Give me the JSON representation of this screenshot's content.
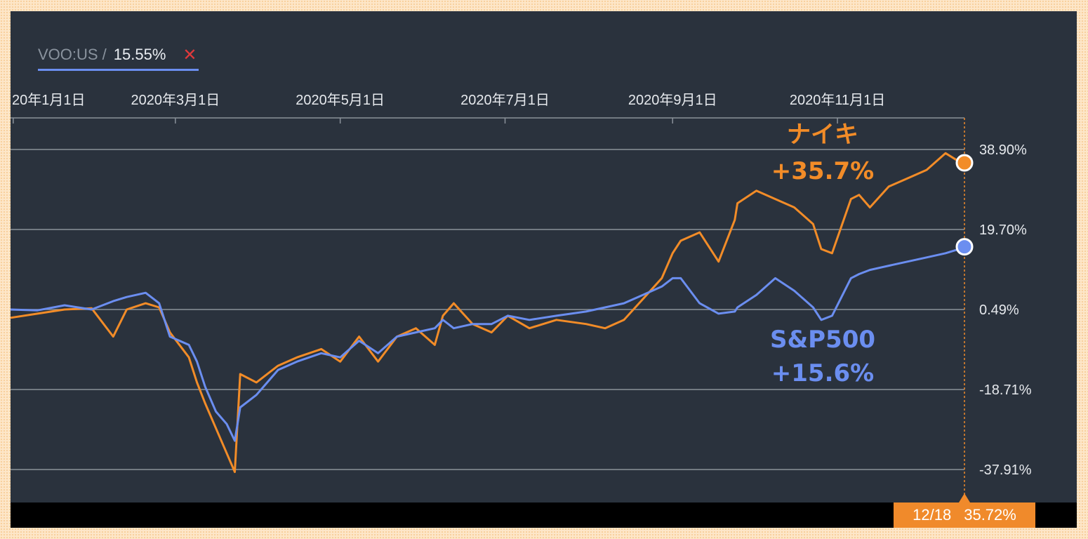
{
  "legend": {
    "symbol": "VOO:US /",
    "value": "15.55%",
    "close_label": "✕"
  },
  "crosshair": {
    "date": "12/18",
    "value": "35.72%"
  },
  "annotations": [
    {
      "text": "ナイキ",
      "series": "nike"
    },
    {
      "text": "+35.7%",
      "series": "nike"
    },
    {
      "text": "S&P500",
      "series": "sp500"
    },
    {
      "text": "+15.6%",
      "series": "sp500"
    }
  ],
  "colors": {
    "nike": "#f28c28",
    "sp500": "#6b8ef0",
    "background": "#2a323d",
    "grid": "#8a919a"
  },
  "chart_data": {
    "type": "line",
    "x_ticks": [
      "20年1月1日",
      "2020年3月1日",
      "2020年5月1日",
      "2020年7月1日",
      "2020年9月1日",
      "2020年11月1日"
    ],
    "y_ticks": [
      "38.90%",
      "19.70%",
      "0.49%",
      "-18.71%",
      "-37.91%"
    ],
    "ylim": [
      -37.91,
      38.9
    ],
    "y_tick_values": [
      38.9,
      19.7,
      0.49,
      -18.71,
      -37.91
    ],
    "xlim": [
      "2019-12-31",
      "2020-12-18"
    ],
    "x_tick_dates": [
      "2020-01-01",
      "2020-03-01",
      "2020-05-01",
      "2020-07-01",
      "2020-09-01",
      "2020-11-01"
    ],
    "series": [
      {
        "key": "nike",
        "x": [
          "2019-12-31",
          "2020-01-10",
          "2020-01-20",
          "2020-01-30",
          "2020-02-07",
          "2020-02-12",
          "2020-02-19",
          "2020-02-24",
          "2020-02-28",
          "2020-03-06",
          "2020-03-09",
          "2020-03-12",
          "2020-03-16",
          "2020-03-20",
          "2020-03-23",
          "2020-03-25",
          "2020-03-31",
          "2020-04-08",
          "2020-04-15",
          "2020-04-24",
          "2020-05-01",
          "2020-05-08",
          "2020-05-15",
          "2020-05-22",
          "2020-05-29",
          "2020-06-05",
          "2020-06-08",
          "2020-06-12",
          "2020-06-19",
          "2020-06-26",
          "2020-07-02",
          "2020-07-10",
          "2020-07-20",
          "2020-07-31",
          "2020-08-07",
          "2020-08-14",
          "2020-08-21",
          "2020-08-28",
          "2020-09-01",
          "2020-09-04",
          "2020-09-11",
          "2020-09-18",
          "2020-09-24",
          "2020-09-25",
          "2020-10-02",
          "2020-10-09",
          "2020-10-16",
          "2020-10-23",
          "2020-10-26",
          "2020-10-30",
          "2020-11-06",
          "2020-11-09",
          "2020-11-13",
          "2020-11-20",
          "2020-11-27",
          "2020-12-04",
          "2020-12-11",
          "2020-12-16",
          "2020-12-18"
        ],
        "values": [
          -1.5,
          -0.5,
          0.5,
          0.8,
          -6,
          0.5,
          2,
          1,
          -5,
          -11,
          -17,
          -22,
          -28,
          -34,
          -38.5,
          -15,
          -17,
          -13,
          -11,
          -9,
          -12,
          -6,
          -12,
          -6,
          -4,
          -8,
          -1,
          2,
          -3,
          -5,
          -1,
          -4,
          -2,
          -3,
          -4,
          -2,
          3,
          8,
          14,
          17,
          19,
          12,
          22,
          26,
          29,
          27,
          25,
          21,
          15,
          14,
          27,
          28,
          25,
          30,
          32,
          34,
          38,
          36,
          35.7
        ]
      },
      {
        "key": "sp500",
        "x": [
          "2019-12-31",
          "2020-01-10",
          "2020-01-20",
          "2020-01-30",
          "2020-02-07",
          "2020-02-12",
          "2020-02-19",
          "2020-02-24",
          "2020-02-28",
          "2020-03-06",
          "2020-03-09",
          "2020-03-12",
          "2020-03-16",
          "2020-03-20",
          "2020-03-23",
          "2020-03-25",
          "2020-03-31",
          "2020-04-08",
          "2020-04-15",
          "2020-04-24",
          "2020-05-01",
          "2020-05-08",
          "2020-05-15",
          "2020-05-22",
          "2020-05-29",
          "2020-06-05",
          "2020-06-08",
          "2020-06-12",
          "2020-06-19",
          "2020-06-26",
          "2020-07-02",
          "2020-07-10",
          "2020-07-20",
          "2020-07-31",
          "2020-08-07",
          "2020-08-14",
          "2020-08-21",
          "2020-08-28",
          "2020-09-01",
          "2020-09-04",
          "2020-09-11",
          "2020-09-18",
          "2020-09-24",
          "2020-09-25",
          "2020-10-02",
          "2020-10-09",
          "2020-10-16",
          "2020-10-23",
          "2020-10-26",
          "2020-10-30",
          "2020-11-06",
          "2020-11-09",
          "2020-11-13",
          "2020-11-20",
          "2020-11-27",
          "2020-12-04",
          "2020-12-11",
          "2020-12-16",
          "2020-12-18"
        ],
        "values": [
          0.5,
          0.3,
          1.5,
          0.5,
          2.5,
          3.5,
          4.5,
          2,
          -6,
          -8,
          -12,
          -18,
          -24,
          -27,
          -31,
          -23,
          -20,
          -14,
          -12,
          -10,
          -11,
          -7,
          -10,
          -6,
          -5,
          -4,
          -2,
          -4,
          -3,
          -3,
          -1,
          -2,
          -1,
          0,
          1,
          2,
          4,
          6,
          8,
          8,
          2,
          -0.5,
          0,
          1,
          4,
          8,
          5,
          1,
          -2,
          -1,
          8,
          9,
          10,
          11,
          12,
          13,
          14,
          15,
          15.55
        ]
      }
    ]
  }
}
